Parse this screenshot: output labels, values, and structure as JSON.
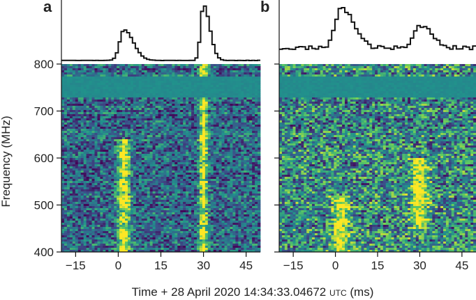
{
  "chart_data": [
    {
      "type": "heatmap",
      "panel_label": "a",
      "x_ticks": [
        -15,
        0,
        15,
        30,
        45
      ],
      "y_ticks": [
        400,
        500,
        600,
        700,
        800
      ],
      "xlim": [
        -20,
        50
      ],
      "ylim": [
        400,
        800
      ],
      "colormap": [
        "#440154",
        "#3b528b",
        "#21918c",
        "#5ec962",
        "#fde725"
      ],
      "bursts": [
        {
          "time": 2,
          "width": 1.5,
          "profile_peak": 0.55,
          "freq_range": [
            400,
            640
          ]
        },
        {
          "time": 30,
          "width": 1.0,
          "profile_peak": 1.0,
          "freq_range": [
            400,
            800
          ]
        }
      ],
      "masked_band": [
        728,
        775
      ]
    },
    {
      "type": "heatmap",
      "panel_label": "b",
      "x_ticks": [
        -15,
        0,
        15,
        30,
        45
      ],
      "xlim": [
        -20,
        50
      ],
      "ylim": [
        400,
        800
      ],
      "colormap": [
        "#440154",
        "#3b528b",
        "#21918c",
        "#5ec962",
        "#fde725"
      ],
      "bursts": [
        {
          "time": 2,
          "width": 2.0,
          "profile_peak": 0.9,
          "freq_range": [
            400,
            520
          ]
        },
        {
          "time": 30,
          "width": 2.0,
          "profile_peak": 0.5,
          "freq_range": [
            450,
            600
          ]
        }
      ],
      "masked_band": [
        728,
        775
      ]
    }
  ],
  "labels": {
    "ylabel": "Frequency (MHz)",
    "xlabel_prefix": "Time + 28 April 2020 14:34:33.04672 ",
    "xlabel_unit": "UTC",
    "xlabel_suffix": " (ms)"
  }
}
